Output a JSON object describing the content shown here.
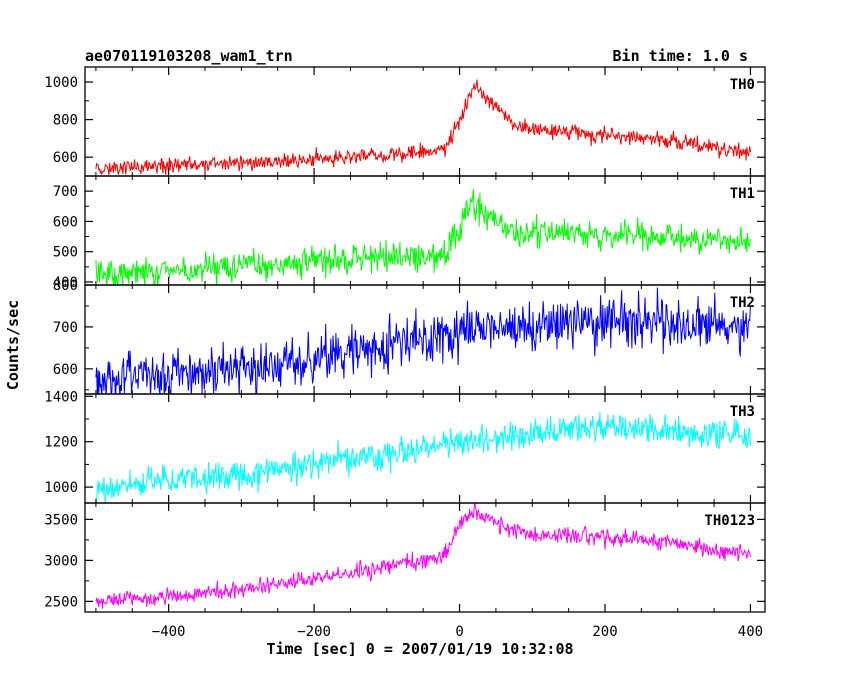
{
  "header": {
    "object_name": "ae070119103208_wam1_trn",
    "bin_time": "Bin time: 1.0 s"
  },
  "chart_data": {
    "type": "line",
    "xlabel": "Time [sec] 0 = 2007/01/19 10:32:08",
    "ylabel": "Counts/sec",
    "xlim": [
      -515,
      420
    ],
    "x_ticks": [
      -400,
      -200,
      0,
      200,
      400
    ],
    "x_tick_labels": [
      "−400",
      "−200",
      "0",
      "200",
      "400"
    ],
    "x_range": [
      -500,
      400
    ],
    "shared_x": true,
    "panels": [
      {
        "name": "TH0",
        "color": "#ff0000",
        "ylim": [
          500,
          1080
        ],
        "y_ticks": [
          600,
          800,
          1000
        ],
        "y_tick_labels": [
          "600",
          "800",
          "1000"
        ],
        "baseline": [
          [
            -500,
            540
          ],
          [
            -300,
            570
          ],
          [
            -100,
            610
          ],
          [
            -20,
            640
          ],
          [
            0,
            800
          ],
          [
            20,
            985
          ],
          [
            40,
            900
          ],
          [
            80,
            760
          ],
          [
            150,
            730
          ],
          [
            250,
            705
          ],
          [
            400,
            620
          ]
        ],
        "noise": 22
      },
      {
        "name": "TH1",
        "color": "#00ff00",
        "ylim": [
          390,
          750
        ],
        "y_ticks": [
          400,
          500,
          600,
          700
        ],
        "y_tick_labels": [
          "400",
          "500",
          "600",
          "700"
        ],
        "baseline": [
          [
            -500,
            420
          ],
          [
            -300,
            450
          ],
          [
            -100,
            480
          ],
          [
            -20,
            490
          ],
          [
            0,
            580
          ],
          [
            15,
            660
          ],
          [
            40,
            620
          ],
          [
            80,
            560
          ],
          [
            200,
            555
          ],
          [
            400,
            530
          ]
        ],
        "noise": 24
      },
      {
        "name": "TH2",
        "color": "#0000ff",
        "ylim": [
          540,
          800
        ],
        "y_ticks": [
          600,
          700,
          800
        ],
        "y_tick_labels": [
          "600",
          "700",
          "800"
        ],
        "baseline": [
          [
            -500,
            575
          ],
          [
            -300,
            600
          ],
          [
            -100,
            655
          ],
          [
            0,
            690
          ],
          [
            200,
            710
          ],
          [
            400,
            700
          ]
        ],
        "noise": 30
      },
      {
        "name": "TH3",
        "color": "#00ffff",
        "ylim": [
          930,
          1410
        ],
        "y_ticks": [
          1000,
          1200,
          1400
        ],
        "y_tick_labels": [
          "1000",
          "1200",
          "1400"
        ],
        "baseline": [
          [
            -500,
            1000
          ],
          [
            -300,
            1055
          ],
          [
            -100,
            1150
          ],
          [
            0,
            1200
          ],
          [
            200,
            1265
          ],
          [
            400,
            1230
          ]
        ],
        "noise": 32
      },
      {
        "name": "TH0123",
        "color": "#ff00ff",
        "ylim": [
          2370,
          3700
        ],
        "y_ticks": [
          2500,
          3000,
          3500
        ],
        "y_tick_labels": [
          "2500",
          "3000",
          "3500"
        ],
        "baseline": [
          [
            -500,
            2500
          ],
          [
            -300,
            2640
          ],
          [
            -100,
            2920
          ],
          [
            -20,
            3060
          ],
          [
            0,
            3450
          ],
          [
            20,
            3620
          ],
          [
            50,
            3440
          ],
          [
            100,
            3320
          ],
          [
            250,
            3270
          ],
          [
            400,
            3060
          ]
        ],
        "noise": 50
      }
    ]
  }
}
